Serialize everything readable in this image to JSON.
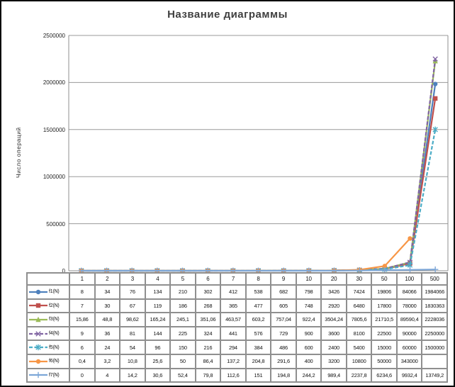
{
  "chart_data": {
    "type": "line",
    "title": "Название диаграммы",
    "xlabel": "",
    "ylabel": "Число операций",
    "ylim": [
      0,
      2500000
    ],
    "yticks": [
      0,
      500000,
      1000000,
      1500000,
      2000000,
      2500000
    ],
    "ytick_labels": [
      "0",
      "500000",
      "1000000",
      "1500000",
      "2000000",
      "2500000"
    ],
    "grid": true,
    "legend_position": "table-left-column",
    "categories": [
      1,
      2,
      3,
      4,
      5,
      6,
      7,
      8,
      9,
      10,
      20,
      30,
      50,
      100,
      500
    ],
    "series": [
      {
        "name": "f1(N)",
        "color": "#4F81BD",
        "marker": "circle",
        "dash": false,
        "values": [
          8,
          34,
          76,
          134,
          210,
          302,
          412,
          538,
          682,
          798,
          3426,
          7424,
          19806,
          84066,
          1984066
        ]
      },
      {
        "name": "f2(N)",
        "color": "#C0504D",
        "marker": "square",
        "dash": false,
        "values": [
          7,
          30,
          67,
          119,
          186,
          268,
          365,
          477,
          605,
          748,
          2920,
          6480,
          17800,
          78000,
          1830363
        ]
      },
      {
        "name": "f3(N)",
        "color": "#9BBB59",
        "marker": "triangle",
        "dash": false,
        "values": [
          15.86,
          48.8,
          98.62,
          165.24,
          245.1,
          351.06,
          463.57,
          603.2,
          757.04,
          922.4,
          3504.24,
          7805.6,
          21710.5,
          89590.4,
          2228036
        ]
      },
      {
        "name": "f4(N)",
        "color": "#8064A2",
        "marker": "x",
        "dash": true,
        "values": [
          9,
          36,
          81,
          144,
          225,
          324,
          441,
          576,
          729,
          900,
          3600,
          8100,
          22500,
          90000,
          2250000
        ]
      },
      {
        "name": "f5(N)",
        "color": "#4BACC6",
        "marker": "asterisk",
        "dash": true,
        "values": [
          6,
          24,
          54,
          96,
          150,
          216,
          294,
          384,
          486,
          600,
          2400,
          5400,
          15000,
          60000,
          1500000
        ]
      },
      {
        "name": "f6(N)",
        "color": "#F79646",
        "marker": "circle",
        "dash": false,
        "values": [
          0.4,
          3.2,
          10.8,
          25.6,
          50,
          86.4,
          137.2,
          204.8,
          291.6,
          400,
          3200,
          10800,
          50000,
          343000,
          null
        ]
      },
      {
        "name": "f7(N)",
        "color": "#7DA7D8",
        "marker": "plus",
        "dash": false,
        "values": [
          0,
          4,
          14.2,
          30.6,
          52.4,
          79.8,
          112.6,
          151,
          194.8,
          244.2,
          989.4,
          2237.8,
          6234.6,
          9932.4,
          13749.2
        ]
      }
    ]
  },
  "colors": {
    "grid": "#9a9a9a",
    "axis": "#8f8f8f",
    "frame": "#0b0b0b",
    "title_text": "#3f3f3f"
  }
}
